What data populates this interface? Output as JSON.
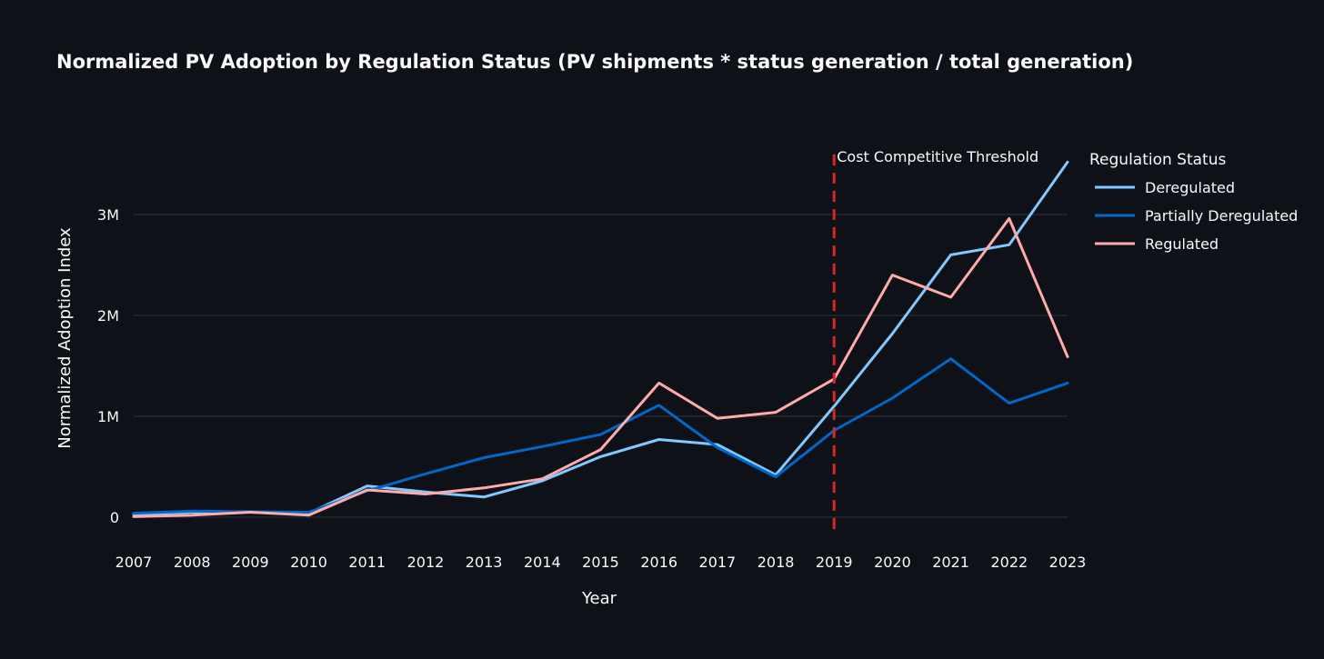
{
  "chart_data": {
    "type": "line",
    "title": "Normalized PV Adoption by Regulation Status (PV shipments * status generation / total generation)",
    "xlabel": "Year",
    "ylabel": "Normalized Adoption Index",
    "x": [
      2007,
      2008,
      2009,
      2010,
      2011,
      2012,
      2013,
      2014,
      2015,
      2016,
      2017,
      2018,
      2019,
      2020,
      2021,
      2022,
      2023
    ],
    "x_tick_labels": [
      "2007",
      "2008",
      "2009",
      "2010",
      "2011",
      "2012",
      "2013",
      "2014",
      "2015",
      "2016",
      "2017",
      "2018",
      "2019",
      "2020",
      "2021",
      "2022",
      "2023"
    ],
    "ylim": [
      -200000,
      3600000
    ],
    "y_ticks": [
      0,
      1000000,
      2000000,
      3000000
    ],
    "y_tick_labels": [
      "0",
      "1M",
      "2M",
      "3M"
    ],
    "grid": true,
    "legend": {
      "title": "Regulation Status",
      "placement": "right"
    },
    "series": [
      {
        "name": "Deregulated",
        "color": "#83c9ff",
        "values": [
          30000,
          50000,
          50000,
          40000,
          310000,
          250000,
          200000,
          360000,
          600000,
          770000,
          720000,
          420000,
          1100000,
          1820000,
          2600000,
          2700000,
          3520000
        ]
      },
      {
        "name": "Partially Deregulated",
        "color": "#0068c9",
        "values": [
          40000,
          60000,
          55000,
          50000,
          260000,
          430000,
          590000,
          700000,
          820000,
          1110000,
          690000,
          400000,
          860000,
          1180000,
          1570000,
          1130000,
          1330000
        ]
      },
      {
        "name": "Regulated",
        "color": "#ffabab",
        "values": [
          5000,
          20000,
          50000,
          20000,
          270000,
          230000,
          290000,
          380000,
          670000,
          1330000,
          980000,
          1040000,
          1370000,
          2400000,
          2180000,
          2960000,
          1590000
        ]
      }
    ],
    "annotations": [
      {
        "type": "vline",
        "x": 2019,
        "text": "Cost Competitive Threshold",
        "color": "#d62728",
        "style": "dashed"
      }
    ]
  }
}
